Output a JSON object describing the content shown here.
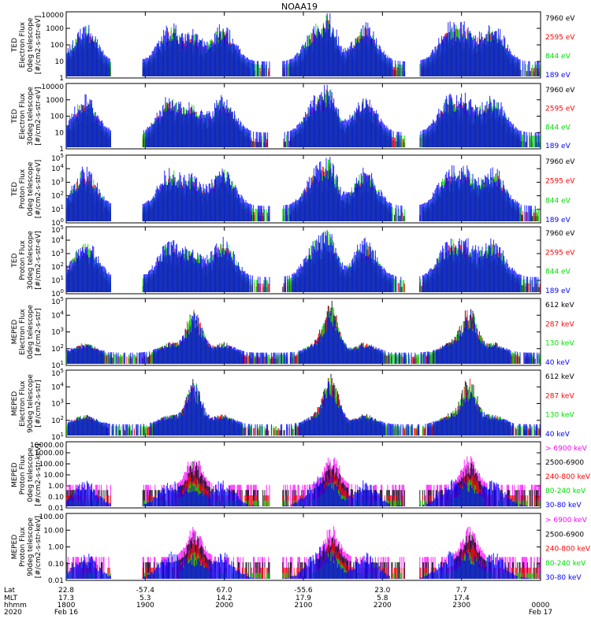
{
  "title": "NOAA19",
  "footer": {
    "row_labels": [
      "Lat",
      "MLT",
      "hhmm",
      "2020"
    ],
    "columns": [
      {
        "lat": "22.8",
        "mlt": "17.3",
        "hhmm": "1800",
        "date": "Feb 16"
      },
      {
        "lat": "-57.4",
        "mlt": "5.3",
        "hhmm": "1900",
        "date": ""
      },
      {
        "lat": "67.0",
        "mlt": "14.2",
        "hhmm": "2000",
        "date": ""
      },
      {
        "lat": "-55.6",
        "mlt": "17.9",
        "hhmm": "2100",
        "date": ""
      },
      {
        "lat": "23.0",
        "mlt": "5.8",
        "hhmm": "2200",
        "date": ""
      },
      {
        "lat": "7.7",
        "mlt": "17.4",
        "hhmm": "2300",
        "date": ""
      },
      {
        "lat": "",
        "mlt": "",
        "hhmm": "0000",
        "date": "Feb 17"
      }
    ]
  },
  "colors": {
    "black": "#000000",
    "red": "#ff0000",
    "green": "#00dd00",
    "blue": "#0000ff",
    "magenta": "#ff00ff"
  },
  "chart_data": [
    {
      "type": "scatter",
      "instrument": "TED",
      "ylabel": [
        "TED",
        "Electron Flux",
        "0deg telescope",
        "[#/cm2-s-str-eV]"
      ],
      "yticks": [
        "1",
        "10",
        "100",
        "1000",
        "10000"
      ],
      "legend": [
        {
          "label": "7960 eV",
          "color": "#000000"
        },
        {
          "label": "2595 eV",
          "color": "#ff0000"
        },
        {
          "label": "844 eV",
          "color": "#00dd00"
        },
        {
          "label": "189 eV",
          "color": "#0000ff"
        }
      ]
    },
    {
      "type": "scatter",
      "instrument": "TED",
      "ylabel": [
        "TED",
        "Electron Flux",
        "30deg telescope",
        "[#/cm2-s-str-eV]"
      ],
      "yticks": [
        "1",
        "10",
        "100",
        "1000",
        "10000"
      ],
      "legend": [
        {
          "label": "7960 eV",
          "color": "#000000"
        },
        {
          "label": "2595 eV",
          "color": "#ff0000"
        },
        {
          "label": "844 eV",
          "color": "#00dd00"
        },
        {
          "label": "189 eV",
          "color": "#0000ff"
        }
      ]
    },
    {
      "type": "scatter",
      "instrument": "TED",
      "ylabel": [
        "TED",
        "Proton Flux",
        "0deg telescope",
        "[#/cm2-s-str-eV]"
      ],
      "yticks": [
        "10^0",
        "10^1",
        "10^2",
        "10^3",
        "10^4",
        "10^5"
      ],
      "legend": [
        {
          "label": "7960 eV",
          "color": "#000000"
        },
        {
          "label": "2595 eV",
          "color": "#ff0000"
        },
        {
          "label": "844 eV",
          "color": "#00dd00"
        },
        {
          "label": "189 eV",
          "color": "#0000ff"
        }
      ]
    },
    {
      "type": "scatter",
      "instrument": "TED",
      "ylabel": [
        "TED",
        "Proton Flux",
        "30deg telescope",
        "[#/cm2-s-str-eV]"
      ],
      "yticks": [
        "10^0",
        "10^1",
        "10^2",
        "10^3",
        "10^4",
        "10^5"
      ],
      "legend": [
        {
          "label": "7960 eV",
          "color": "#000000"
        },
        {
          "label": "2595 eV",
          "color": "#ff0000"
        },
        {
          "label": "844 eV",
          "color": "#00dd00"
        },
        {
          "label": "189 eV",
          "color": "#0000ff"
        }
      ]
    },
    {
      "type": "scatter",
      "instrument": "MEPED",
      "ylabel": [
        "MEPED",
        "Electron Flux",
        "0deg telescope",
        "[#/cm2-s-str]"
      ],
      "yticks": [
        "10^1",
        "10^2",
        "10^3",
        "10^4",
        "10^5"
      ],
      "legend": [
        {
          "label": "612 keV",
          "color": "#000000"
        },
        {
          "label": "287 keV",
          "color": "#ff0000"
        },
        {
          "label": "130 keV",
          "color": "#00dd00"
        },
        {
          "label": "40 keV",
          "color": "#0000ff"
        }
      ]
    },
    {
      "type": "scatter",
      "instrument": "MEPED",
      "ylabel": [
        "MEPED",
        "Electron Flux",
        "90deg telescope",
        "[#/cm2-s-str]"
      ],
      "yticks": [
        "10^1",
        "10^2",
        "10^3",
        "10^4",
        "10^5"
      ],
      "legend": [
        {
          "label": "612 keV",
          "color": "#000000"
        },
        {
          "label": "287 keV",
          "color": "#ff0000"
        },
        {
          "label": "130 keV",
          "color": "#00dd00"
        },
        {
          "label": "40 keV",
          "color": "#0000ff"
        }
      ]
    },
    {
      "type": "scatter",
      "instrument": "MEPED",
      "ylabel": [
        "MEPED",
        "Proton Flux",
        "0deg telescope",
        "[#/cm2-s-str-keV]"
      ],
      "yticks": [
        "0.01",
        "0.10",
        "1.00",
        "10.00",
        "100.00",
        "1000.00",
        "10000.00"
      ],
      "legend": [
        {
          "label": "> 6900 keV",
          "color": "#ff00ff"
        },
        {
          "label": "2500-6900",
          "color": "#000000"
        },
        {
          "label": "240-800 keV",
          "color": "#ff0000"
        },
        {
          "label": "80-240 keV",
          "color": "#00dd00"
        },
        {
          "label": "30-80 keV",
          "color": "#0000ff"
        }
      ]
    },
    {
      "type": "scatter",
      "instrument": "MEPED",
      "ylabel": [
        "MEPED",
        "Proton Flux",
        "90deg telescope",
        "[#/cm2-s-str-keV]"
      ],
      "yticks": [
        "0.01",
        "0.10",
        "1.00",
        "10.00",
        "100.00"
      ],
      "legend": [
        {
          "label": "> 6900 keV",
          "color": "#ff00ff"
        },
        {
          "label": "2500-6900",
          "color": "#000000"
        },
        {
          "label": "240-800 keV",
          "color": "#ff0000"
        },
        {
          "label": "80-240 keV",
          "color": "#00dd00"
        },
        {
          "label": "30-80 keV",
          "color": "#0000ff"
        }
      ]
    }
  ]
}
